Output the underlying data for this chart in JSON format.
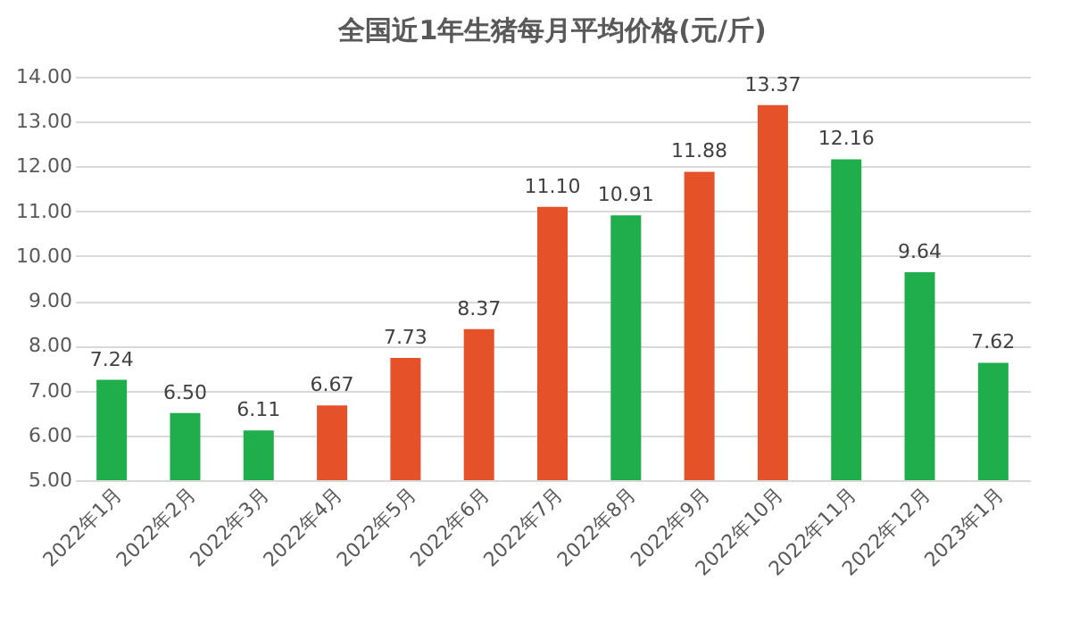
{
  "chart_data": {
    "type": "bar",
    "title": "全国近1年生猪每月平均价格(元/斤)",
    "categories": [
      "2022年1月",
      "2022年2月",
      "2022年3月",
      "2022年4月",
      "2022年5月",
      "2022年6月",
      "2022年7月",
      "2022年8月",
      "2022年9月",
      "2022年10月",
      "2022年11月",
      "2022年12月",
      "2023年1月"
    ],
    "values": [
      7.24,
      6.5,
      6.11,
      6.67,
      7.73,
      8.37,
      11.1,
      10.91,
      11.88,
      13.37,
      12.16,
      9.64,
      7.62
    ],
    "value_labels": [
      "7.24",
      "6.50",
      "6.11",
      "6.67",
      "7.73",
      "8.37",
      "11.10",
      "10.91",
      "11.88",
      "13.37",
      "12.16",
      "9.64",
      "7.62"
    ],
    "colors": [
      "#1fae4b",
      "#1fae4b",
      "#1fae4b",
      "#e5522a",
      "#e5522a",
      "#e5522a",
      "#e5522a",
      "#1fae4b",
      "#e5522a",
      "#e5522a",
      "#1fae4b",
      "#1fae4b",
      "#1fae4b"
    ],
    "ylim": [
      5,
      14
    ],
    "yticks": [
      {
        "value": 5,
        "label": "5.00"
      },
      {
        "value": 6,
        "label": "6.00"
      },
      {
        "value": 7,
        "label": "7.00"
      },
      {
        "value": 8,
        "label": "8.00"
      },
      {
        "value": 9,
        "label": "9.00"
      },
      {
        "value": 10,
        "label": "10.00"
      },
      {
        "value": 11,
        "label": "11.00"
      },
      {
        "value": 12,
        "label": "12.00"
      },
      {
        "value": 13,
        "label": "13.00"
      },
      {
        "value": 14,
        "label": "14.00"
      }
    ],
    "grid": "y"
  }
}
